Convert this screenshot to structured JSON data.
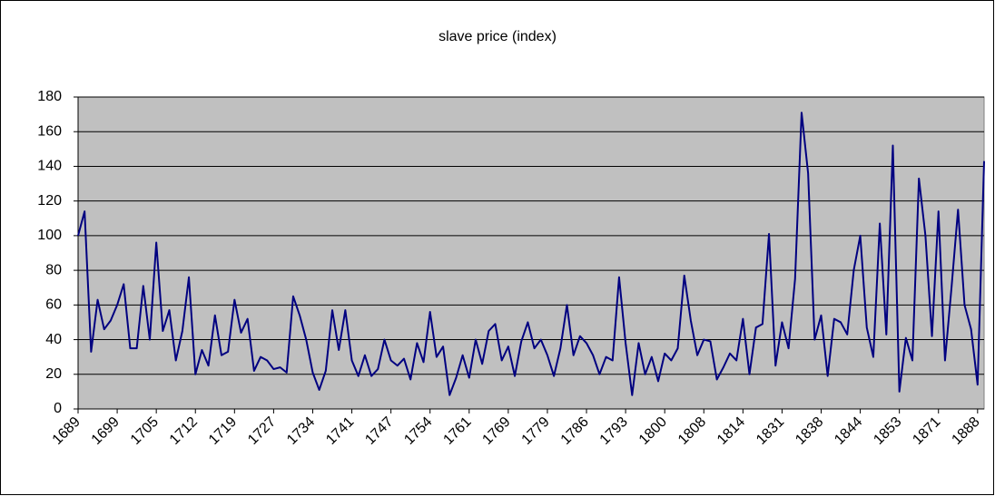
{
  "chart_data": {
    "type": "line",
    "title": "slave price (index)",
    "categories": [
      "1689",
      null,
      null,
      null,
      null,
      null,
      "1699",
      null,
      null,
      null,
      null,
      null,
      "1705",
      null,
      null,
      null,
      null,
      null,
      "1712",
      null,
      null,
      null,
      null,
      null,
      "1719",
      null,
      null,
      null,
      null,
      null,
      "1727",
      null,
      null,
      null,
      null,
      null,
      "1734",
      null,
      null,
      null,
      null,
      null,
      "1741",
      null,
      null,
      null,
      null,
      null,
      "1747",
      null,
      null,
      null,
      null,
      null,
      "1754",
      null,
      null,
      null,
      null,
      null,
      "1761",
      null,
      null,
      null,
      null,
      null,
      "1769",
      null,
      null,
      null,
      null,
      null,
      "1779",
      null,
      null,
      null,
      null,
      null,
      "1786",
      null,
      null,
      null,
      null,
      null,
      "1793",
      null,
      null,
      null,
      null,
      null,
      "1800",
      null,
      null,
      null,
      null,
      null,
      "1808",
      null,
      null,
      null,
      null,
      null,
      "1814",
      null,
      null,
      null,
      null,
      null,
      "1831",
      null,
      null,
      null,
      null,
      null,
      "1838",
      null,
      null,
      null,
      null,
      null,
      "1844",
      null,
      null,
      null,
      null,
      null,
      "1853",
      null,
      null,
      null,
      null,
      null,
      "1871",
      null,
      null,
      null,
      null,
      null,
      "1888",
      null
    ],
    "values": [
      100,
      114,
      33,
      63,
      46,
      51,
      60,
      72,
      35,
      35,
      71,
      40,
      96,
      45,
      57,
      28,
      45,
      76,
      20,
      34,
      25,
      54,
      31,
      33,
      63,
      44,
      52,
      22,
      30,
      28,
      23,
      24,
      21,
      65,
      54,
      40,
      21,
      11,
      22,
      57,
      34,
      57,
      28,
      19,
      31,
      19,
      23,
      40,
      28,
      25,
      29,
      17,
      38,
      27,
      56,
      30,
      36,
      8,
      18,
      31,
      18,
      40,
      26,
      45,
      49,
      28,
      36,
      19,
      39,
      50,
      35,
      40,
      31,
      19,
      35,
      60,
      31,
      42,
      38,
      31,
      20,
      30,
      28,
      76,
      38,
      8,
      38,
      20,
      30,
      16,
      32,
      28,
      35,
      77,
      51,
      31,
      40,
      39,
      17,
      24,
      32,
      28,
      52,
      20,
      47,
      49,
      101,
      25,
      50,
      35,
      75,
      171,
      136,
      40,
      54,
      19,
      52,
      50,
      43,
      80,
      100,
      47,
      30,
      107,
      43,
      152,
      10,
      41,
      28,
      133,
      100,
      42,
      114,
      28,
      70,
      115,
      60,
      46,
      14,
      143
    ],
    "color": "#000080",
    "ylim": [
      0,
      180
    ],
    "yticks": [
      0,
      20,
      40,
      60,
      80,
      100,
      120,
      140,
      160,
      180
    ],
    "grid": true
  }
}
